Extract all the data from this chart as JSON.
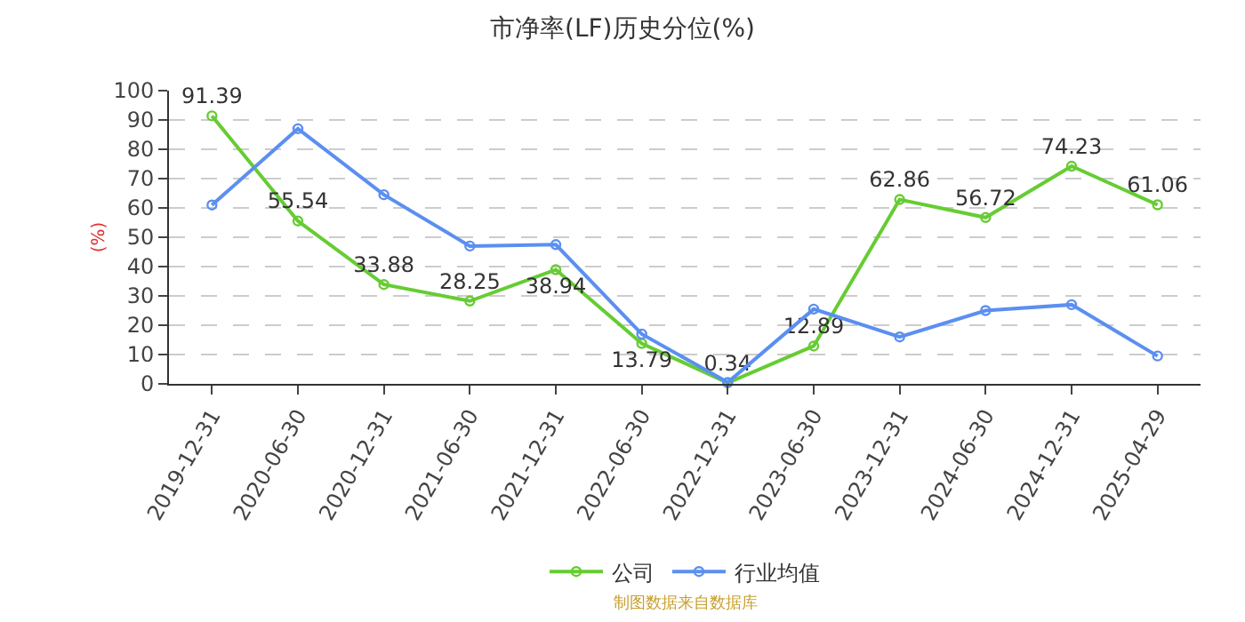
{
  "chart_data": {
    "type": "line",
    "title": "市净率(LF)历史分位(%)",
    "ylabel": "(%)",
    "categories": [
      "2019-12-31",
      "2020-06-30",
      "2020-12-31",
      "2021-06-30",
      "2021-12-31",
      "2022-06-30",
      "2022-12-31",
      "2023-06-30",
      "2023-12-31",
      "2024-06-30",
      "2024-12-31",
      "2025-04-29"
    ],
    "series": [
      {
        "name": "公司",
        "color": "#66cc33",
        "values": [
          91.39,
          55.54,
          33.88,
          28.25,
          38.94,
          13.79,
          0.34,
          12.89,
          62.86,
          56.72,
          74.23,
          61.06
        ],
        "value_labels": [
          "91.39",
          "55.54",
          "33.88",
          "28.25",
          "38.94",
          "13.79",
          "0.34",
          "12.89",
          "62.86",
          "56.72",
          "74.23",
          "61.06"
        ]
      },
      {
        "name": "行业均值",
        "color": "#5b8ff0",
        "values": [
          61,
          87,
          64.5,
          47,
          47.5,
          17,
          0.5,
          25.5,
          16,
          25,
          27,
          9.5
        ]
      }
    ],
    "ylim": [
      0,
      100
    ],
    "yticks": [
      0,
      10,
      20,
      30,
      40,
      50,
      60,
      70,
      80,
      90,
      100
    ],
    "grid": "y",
    "legend": "bottom",
    "marker": "circle",
    "line_style": "solid",
    "annotations": [
      "制图数据来自数据库"
    ]
  }
}
